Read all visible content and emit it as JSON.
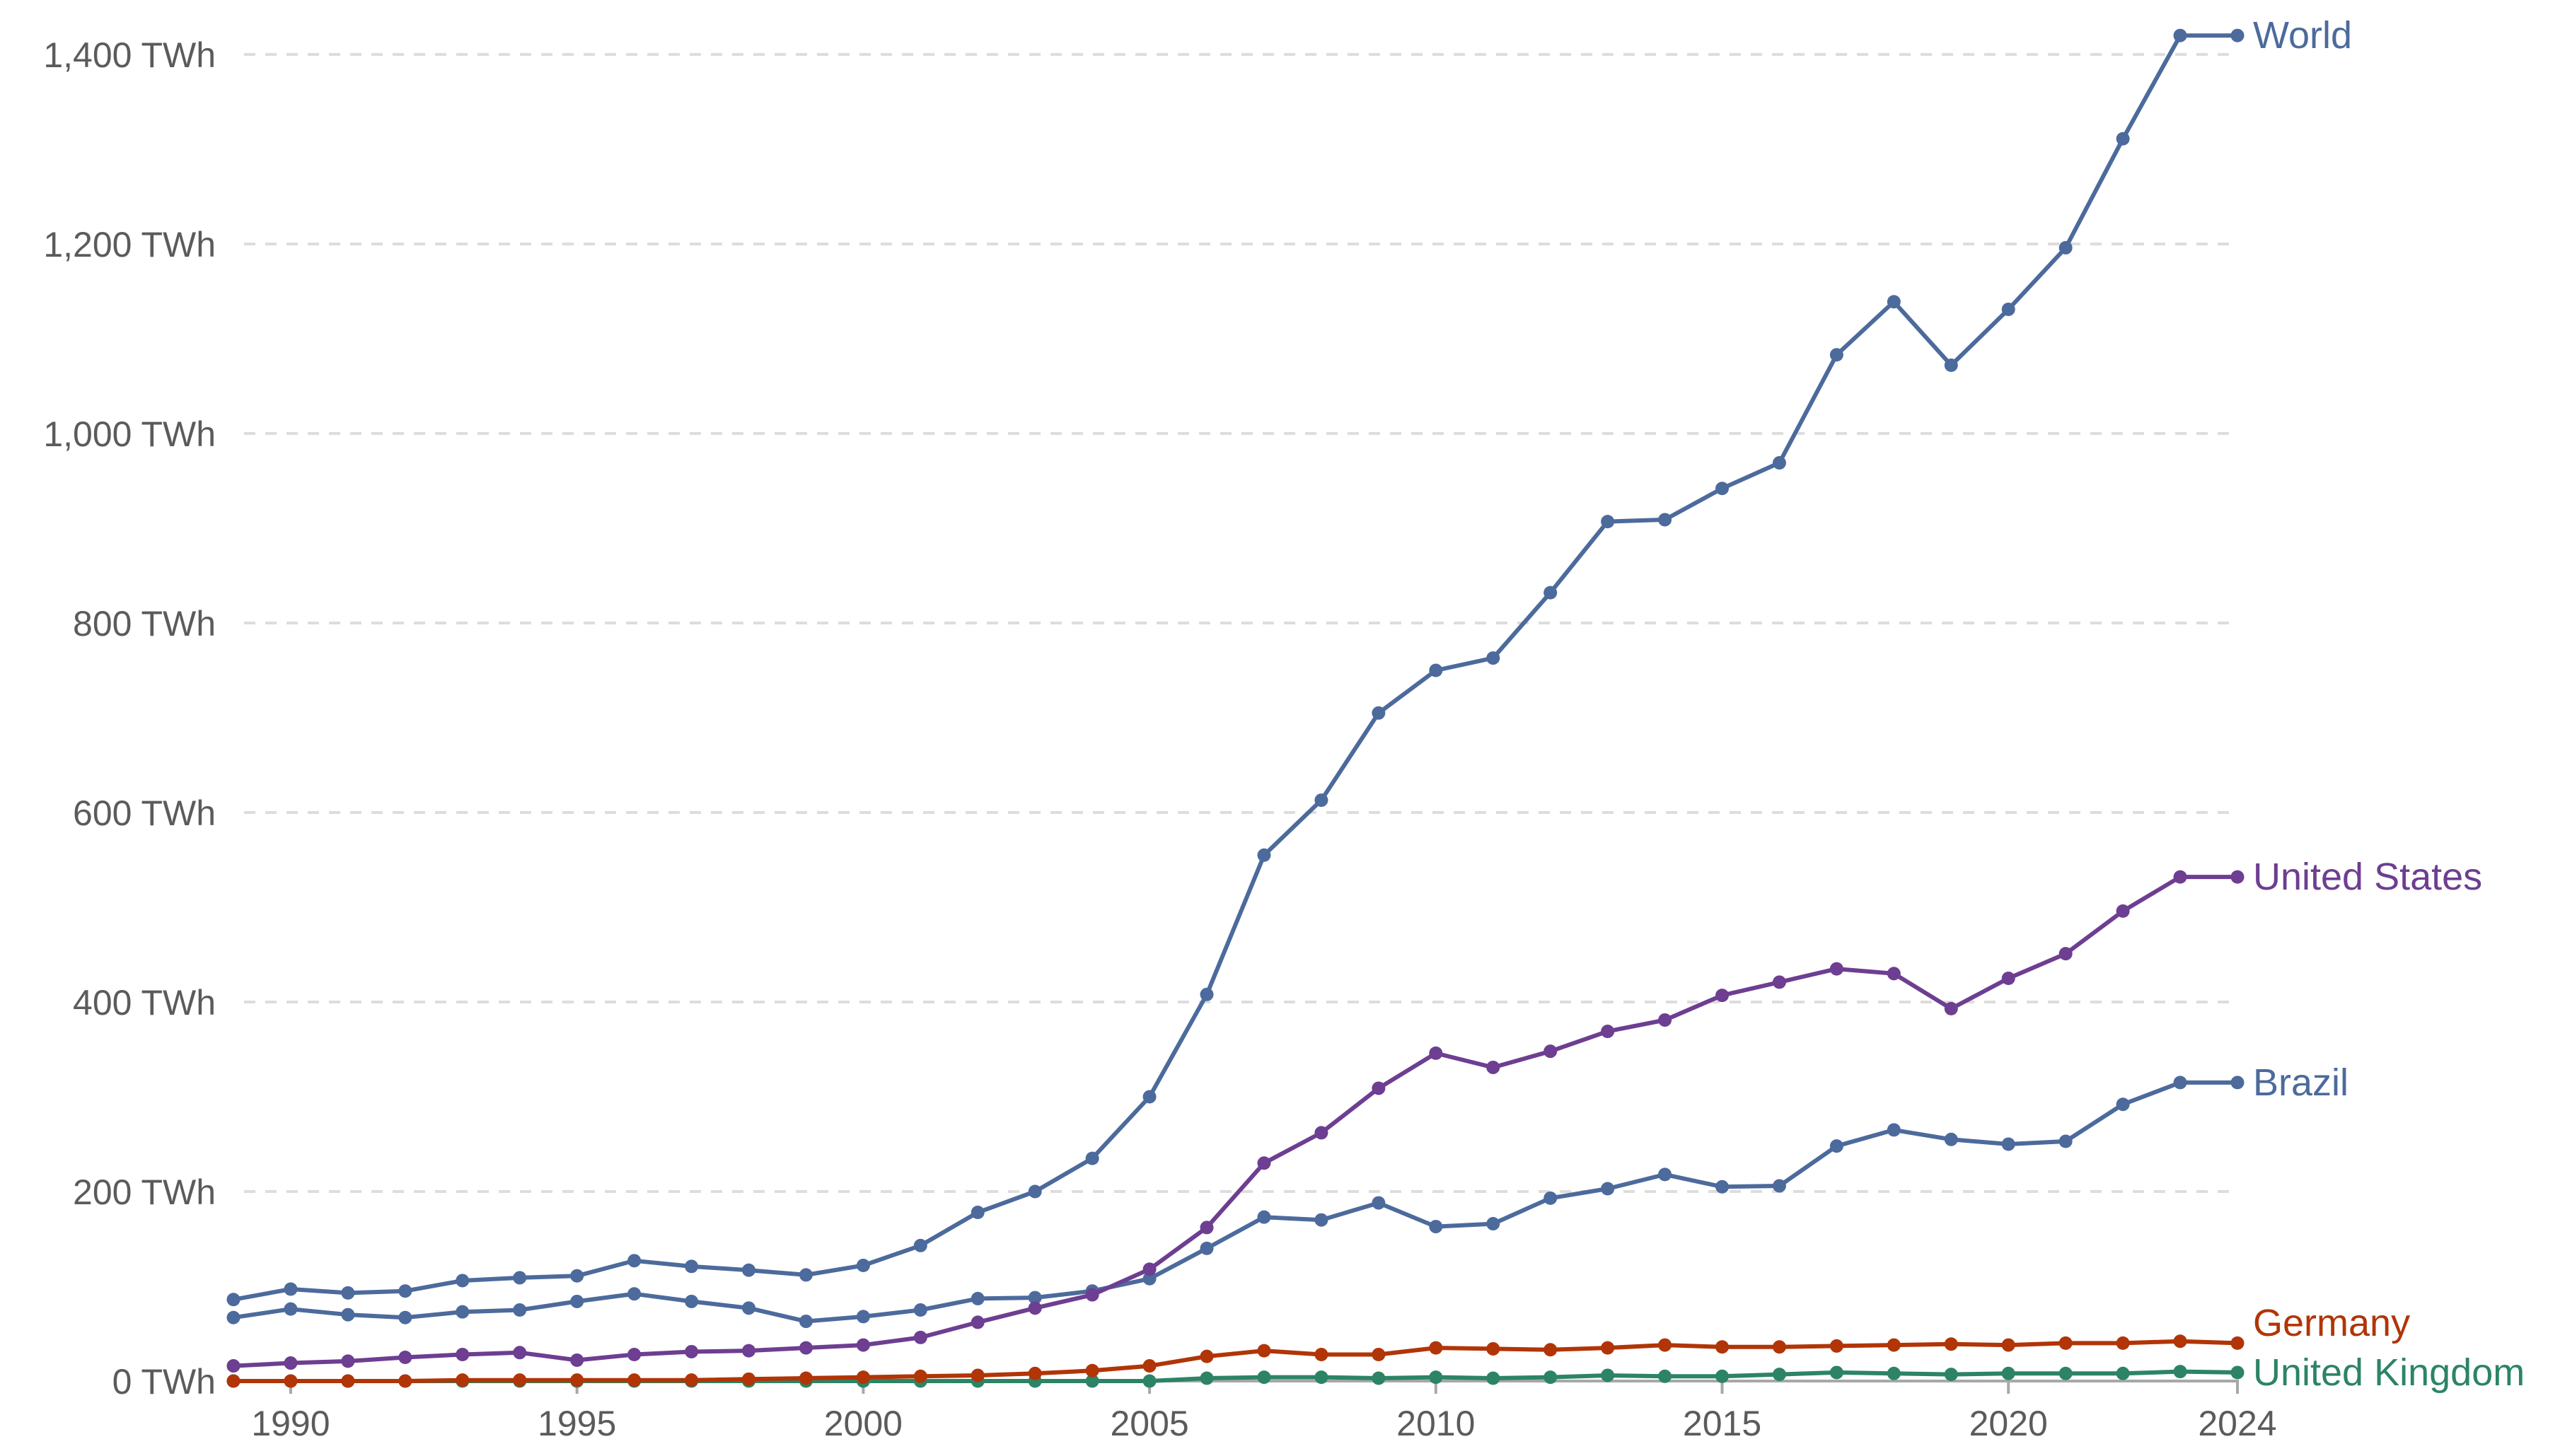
{
  "chart_data": {
    "type": "line",
    "title": "",
    "xlabel": "",
    "ylabel": "",
    "xlim": [
      1989,
      2024
    ],
    "ylim": [
      0,
      1400
    ],
    "y_unit_suffix": " TWh",
    "x_ticks": [
      {
        "value": 1990,
        "label": "1990"
      },
      {
        "value": 1995,
        "label": "1995"
      },
      {
        "value": 2000,
        "label": "2000"
      },
      {
        "value": 2005,
        "label": "2005"
      },
      {
        "value": 2010,
        "label": "2010"
      },
      {
        "value": 2015,
        "label": "2015"
      },
      {
        "value": 2020,
        "label": "2020"
      },
      {
        "value": 2024,
        "label": "2024"
      }
    ],
    "y_ticks": [
      {
        "value": 0,
        "label": "0 TWh"
      },
      {
        "value": 200,
        "label": "200 TWh"
      },
      {
        "value": 400,
        "label": "400 TWh"
      },
      {
        "value": 600,
        "label": "600 TWh"
      },
      {
        "value": 800,
        "label": "800 TWh"
      },
      {
        "value": 1000,
        "label": "1,000 TWh"
      },
      {
        "value": 1200,
        "label": "1,200 TWh"
      },
      {
        "value": 1400,
        "label": "1,400 TWh"
      }
    ],
    "grid": "horizontal-dashed",
    "legend": "direct-labels-right",
    "x": [
      1989,
      1990,
      1991,
      1992,
      1993,
      1994,
      1995,
      1996,
      1997,
      1998,
      1999,
      2000,
      2001,
      2002,
      2003,
      2004,
      2005,
      2006,
      2007,
      2008,
      2009,
      2010,
      2011,
      2012,
      2013,
      2014,
      2015,
      2016,
      2017,
      2018,
      2019,
      2020,
      2021,
      2022,
      2023,
      2024
    ],
    "series": [
      {
        "name": "World",
        "color": "#4c6a9c",
        "values": [
          86,
          97,
          93,
          95,
          106,
          109,
          111,
          127,
          121,
          117,
          112,
          122,
          143,
          178,
          200,
          235,
          300,
          408,
          555,
          613,
          705,
          750,
          763,
          832,
          907,
          909,
          942,
          969,
          1083,
          1139,
          1072,
          1131,
          1196,
          1311,
          1420,
          1420
        ]
      },
      {
        "name": "United States",
        "color": "#6d3e91",
        "values": [
          16,
          19,
          21,
          25,
          28,
          30,
          22,
          28,
          31,
          32,
          35,
          38,
          46,
          62,
          77,
          91,
          118,
          162,
          230,
          262,
          309,
          346,
          331,
          348,
          369,
          381,
          407,
          421,
          435,
          430,
          393,
          425,
          451,
          496,
          532,
          532
        ]
      },
      {
        "name": "Brazil",
        "color": "#4c6a9c",
        "values": [
          67,
          76,
          70,
          67,
          73,
          75,
          84,
          92,
          84,
          77,
          63,
          68,
          75,
          87,
          88,
          95,
          108,
          140,
          173,
          170,
          188,
          163,
          166,
          193,
          203,
          218,
          205,
          206,
          248,
          265,
          255,
          250,
          253,
          292,
          315,
          315
        ]
      },
      {
        "name": "Germany",
        "color": "#b13507",
        "values": [
          0,
          0,
          0,
          0,
          1,
          1,
          1,
          1,
          1,
          2,
          3,
          4,
          5,
          6,
          8,
          11,
          16,
          26,
          32,
          28,
          28,
          35,
          34,
          33,
          35,
          38,
          36,
          36,
          37,
          38,
          39,
          38,
          40,
          40,
          42,
          40
        ]
      },
      {
        "name": "United Kingdom",
        "color": "#2c8465",
        "values": [
          0,
          0,
          0,
          0,
          0,
          0,
          0,
          0,
          0,
          0,
          0,
          0,
          0,
          0,
          0,
          0,
          0,
          3,
          4,
          4,
          3,
          4,
          3,
          4,
          6,
          5,
          5,
          7,
          9,
          8,
          7,
          8,
          8,
          8,
          10,
          9
        ]
      }
    ]
  }
}
